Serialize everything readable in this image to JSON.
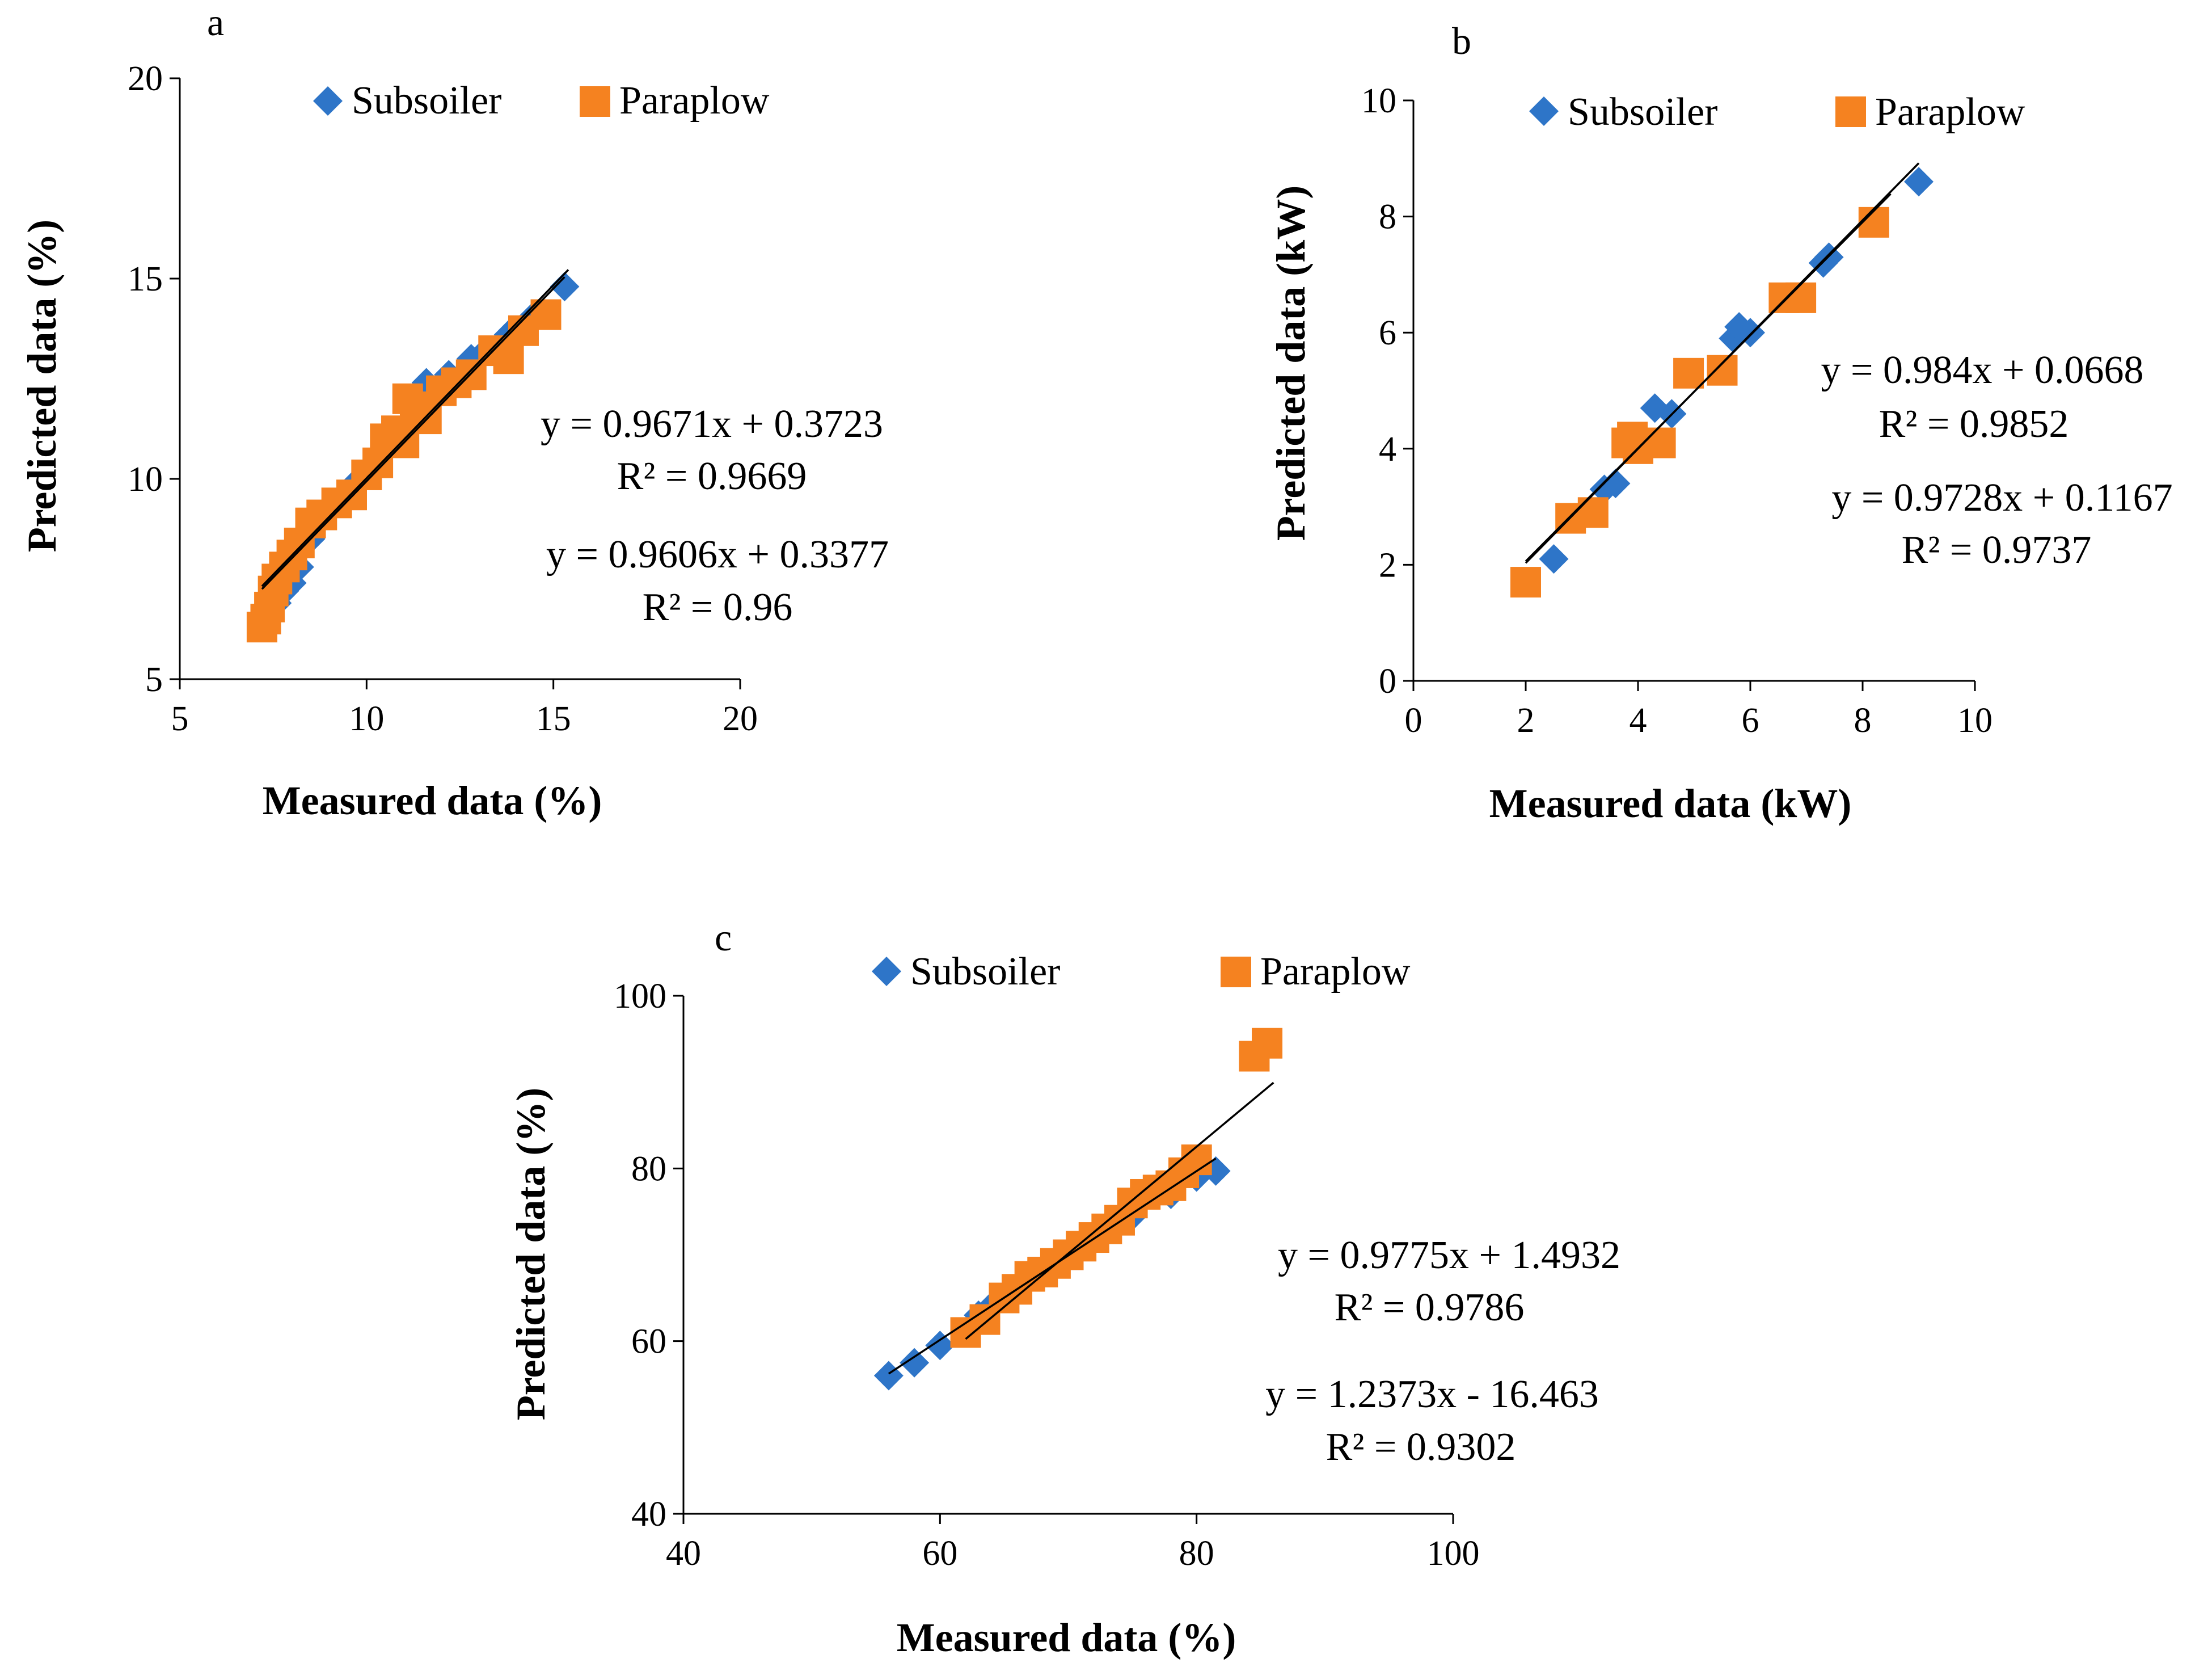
{
  "colors": {
    "subsoiler": "#2E75C8",
    "paraplow": "#F58220",
    "axis": "#000000",
    "trendline": "#000000"
  },
  "marker_names": {
    "subsoiler": "diamond",
    "paraplow": "square"
  },
  "chart_data": [
    {
      "panel_letter": "a",
      "type": "scatter",
      "xlabel": "Measured data (%)",
      "ylabel": "Predicted data (%)",
      "xlim": [
        5,
        20
      ],
      "ylim": [
        5,
        20
      ],
      "xticks": [
        5,
        10,
        15,
        20
      ],
      "yticks": [
        5,
        10,
        15,
        20
      ],
      "legend": [
        "Subsoiler",
        "Paraplow"
      ],
      "series": [
        {
          "name": "Subsoiler",
          "marker": "diamond",
          "x": [
            7.4,
            7.6,
            7.8,
            8.0,
            8.2,
            8.5,
            8.8,
            9.2,
            9.6,
            10.0,
            10.4,
            10.8,
            11.2,
            11.6,
            12.2,
            12.8,
            13.2,
            13.8,
            14.4,
            15.3
          ],
          "y": [
            6.6,
            6.9,
            7.2,
            7.4,
            7.8,
            8.5,
            9.0,
            9.4,
            9.8,
            10.1,
            10.6,
            11.0,
            11.8,
            12.4,
            12.6,
            13.0,
            13.2,
            13.6,
            14.0,
            14.8
          ]
        },
        {
          "name": "Paraplow",
          "marker": "square",
          "x": [
            7.2,
            7.3,
            7.4,
            7.5,
            7.6,
            7.8,
            8.0,
            8.2,
            8.5,
            8.8,
            9.2,
            9.6,
            10.0,
            10.3,
            10.5,
            10.8,
            11.0,
            11.1,
            11.3,
            11.6,
            12.0,
            12.4,
            12.8,
            13.4,
            13.8,
            14.2,
            14.8
          ],
          "y": [
            6.3,
            6.5,
            6.8,
            7.2,
            7.5,
            7.8,
            8.1,
            8.4,
            8.9,
            9.1,
            9.4,
            9.6,
            10.1,
            10.4,
            11.0,
            11.2,
            10.9,
            12.0,
            11.8,
            11.5,
            12.2,
            12.4,
            12.6,
            13.2,
            13.0,
            13.7,
            14.1
          ]
        }
      ],
      "trendlines": [
        {
          "x": [
            7.2,
            15.4
          ],
          "y": [
            7.32,
            15.22
          ]
        },
        {
          "x": [
            7.2,
            15.3
          ],
          "y": [
            7.25,
            15.04
          ]
        }
      ],
      "equations": [
        {
          "eq": "y = 0.9671x + 0.3723",
          "r2": "R² = 0.9669"
        },
        {
          "eq": "y = 0.9606x + 0.3377",
          "r2": "R² = 0.96"
        }
      ]
    },
    {
      "panel_letter": "b",
      "type": "scatter",
      "xlabel": "Measured data (kW)",
      "ylabel": "Predicted data (kW)",
      "xlim": [
        0,
        10
      ],
      "ylim": [
        0,
        10
      ],
      "xticks": [
        0,
        2,
        4,
        6,
        8,
        10
      ],
      "yticks": [
        0,
        2,
        4,
        6,
        8,
        10
      ],
      "legend": [
        "Subsoiler",
        "Paraplow"
      ],
      "series": [
        {
          "name": "Subsoiler",
          "marker": "diamond",
          "x": [
            2.5,
            3.4,
            3.6,
            4.3,
            4.6,
            5.7,
            5.8,
            6.0,
            7.3,
            7.4,
            9.0
          ],
          "y": [
            2.1,
            3.3,
            3.4,
            4.7,
            4.6,
            5.9,
            6.1,
            6.0,
            7.2,
            7.3,
            8.6
          ]
        },
        {
          "name": "Paraplow",
          "marker": "square",
          "x": [
            2.0,
            2.8,
            3.2,
            3.8,
            3.9,
            4.0,
            4.4,
            4.9,
            5.5,
            6.6,
            6.9,
            8.2
          ],
          "y": [
            1.7,
            2.8,
            2.9,
            4.1,
            4.2,
            4.0,
            4.1,
            5.3,
            5.35,
            6.6,
            6.6,
            7.9
          ]
        }
      ],
      "trendlines": [
        {
          "x": [
            2.0,
            9.0
          ],
          "y": [
            2.03,
            8.92
          ]
        },
        {
          "x": [
            2.0,
            8.5
          ],
          "y": [
            2.06,
            8.39
          ]
        }
      ],
      "equations": [
        {
          "eq": "y = 0.984x + 0.0668",
          "r2": "R² = 0.9852"
        },
        {
          "eq": "y = 0.9728x + 0.1167",
          "r2": "R² = 0.9737"
        }
      ]
    },
    {
      "panel_letter": "c",
      "type": "scatter",
      "xlabel": "Measured data (%)",
      "ylabel": "Predicted data (%)",
      "xlim": [
        40,
        100
      ],
      "ylim": [
        40,
        100
      ],
      "xticks": [
        40,
        60,
        80,
        100
      ],
      "yticks": [
        40,
        60,
        80,
        100
      ],
      "legend": [
        "Subsoiler",
        "Paraplow"
      ],
      "series": [
        {
          "name": "Subsoiler",
          "marker": "diamond",
          "x": [
            56,
            58,
            60,
            62,
            63,
            64,
            65,
            66,
            68,
            70,
            72,
            74,
            75,
            78,
            80,
            81.5
          ],
          "y": [
            56,
            57.5,
            59.5,
            61,
            63,
            64,
            65,
            66,
            68,
            70,
            72,
            74,
            74.5,
            77,
            79,
            79.7
          ]
        },
        {
          "name": "Paraplow",
          "marker": "square",
          "x": [
            62,
            63.5,
            65,
            66,
            67,
            68,
            69,
            70,
            71,
            72,
            73,
            74,
            75,
            76,
            77,
            78,
            79,
            80,
            84.5,
            85.5
          ],
          "y": [
            61,
            62.5,
            65,
            66,
            67.5,
            68,
            69,
            70,
            71,
            72,
            73,
            74,
            76,
            77,
            77.5,
            78,
            79.5,
            81,
            93,
            94.5
          ]
        }
      ],
      "trendlines": [
        {
          "x": [
            56,
            81.5
          ],
          "y": [
            56.23,
            81.16
          ]
        },
        {
          "x": [
            62,
            86
          ],
          "y": [
            60.25,
            89.94
          ]
        }
      ],
      "equations": [
        {
          "eq": "y = 0.9775x + 1.4932",
          "r2": "R² = 0.9786"
        },
        {
          "eq": "y = 1.2373x - 16.463",
          "r2": "R² = 0.9302"
        }
      ]
    }
  ]
}
